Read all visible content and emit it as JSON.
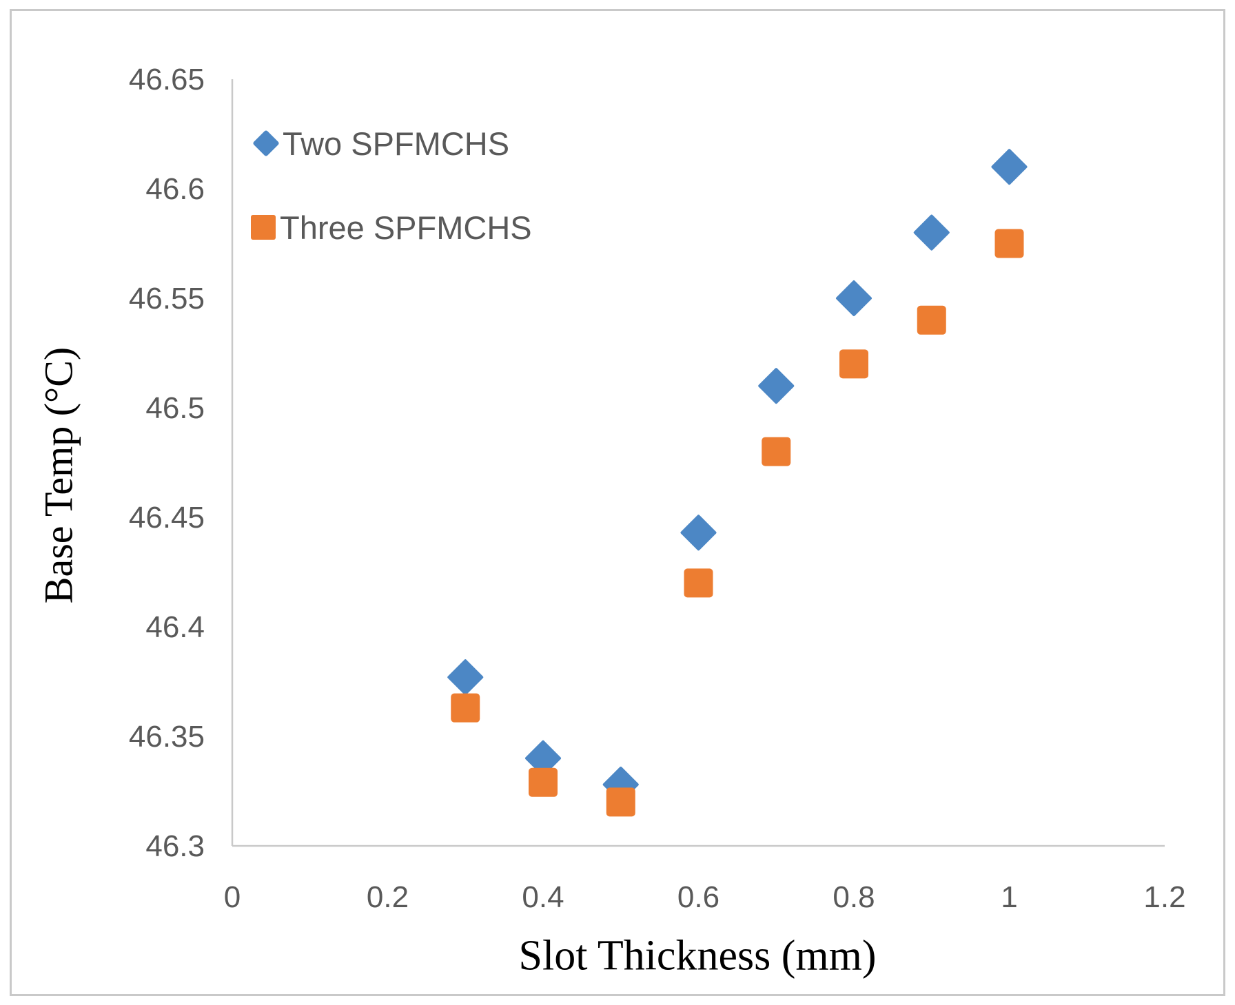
{
  "figure": {
    "background": "#ffffff",
    "border_color": "#c9c9c9"
  },
  "chart_data": {
    "type": "scatter",
    "title": "",
    "xlabel": "Slot Thickness (mm)",
    "ylabel": "Base Temp (°C)",
    "xlim": [
      0,
      1.2
    ],
    "ylim": [
      46.3,
      46.65
    ],
    "x_tick_values": [
      0,
      0.2,
      0.4,
      0.6,
      0.8,
      1,
      1.2
    ],
    "x_tick_labels": [
      "0",
      "0.2",
      "0.4",
      "0.6",
      "0.8",
      "1",
      "1.2"
    ],
    "y_tick_values": [
      46.3,
      46.35,
      46.4,
      46.45,
      46.5,
      46.55,
      46.6,
      46.65
    ],
    "y_tick_labels": [
      "46.3",
      "46.35",
      "46.4",
      "46.45",
      "46.5",
      "46.55",
      "46.6",
      "46.65"
    ],
    "grid": false,
    "legend_position": "inside-top-left",
    "axis_color": "#c9c9c9",
    "tick_label_color": "#595959",
    "x": [
      0.3,
      0.4,
      0.5,
      0.6,
      0.7,
      0.8,
      0.9,
      1.0
    ],
    "series": [
      {
        "name": "Two SPFMCHS",
        "marker": "diamond",
        "color": "#4c87c5",
        "values": [
          46.377,
          46.34,
          46.328,
          46.443,
          46.51,
          46.55,
          46.58,
          46.61
        ]
      },
      {
        "name": "Three SPFMCHS",
        "marker": "square",
        "color": "#ed7d31",
        "values": [
          46.363,
          46.329,
          46.32,
          46.42,
          46.48,
          46.52,
          46.54,
          46.575
        ]
      }
    ]
  }
}
